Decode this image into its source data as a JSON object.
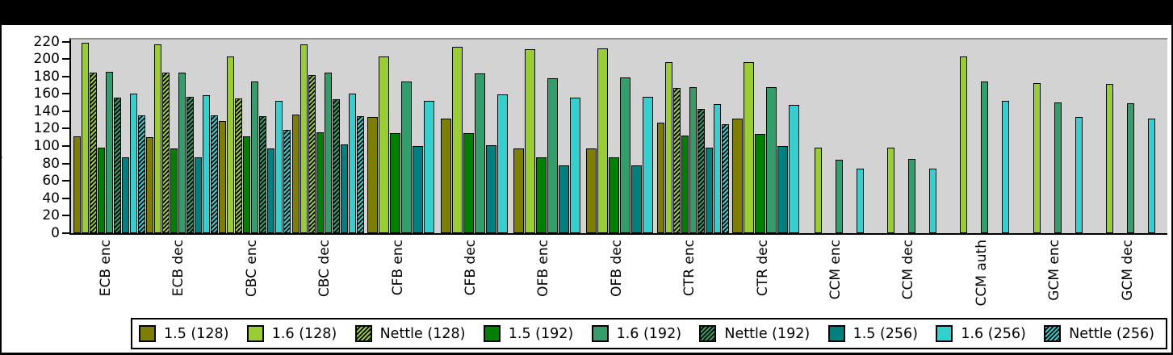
{
  "window": {
    "outer_background": "#000000",
    "figure_background": "#ffffff",
    "plot_background": "#d3d3d3"
  },
  "chart_data": {
    "type": "bar",
    "title": "",
    "xlabel": "",
    "ylabel": "MiB/s",
    "ylim": [
      0,
      224
    ],
    "yticks": [
      0,
      20,
      40,
      60,
      80,
      100,
      120,
      140,
      160,
      180,
      200,
      220
    ],
    "grid": false,
    "legend_position": "bottom",
    "categories": [
      "ECB enc",
      "ECB dec",
      "CBC enc",
      "CBC dec",
      "CFB enc",
      "CFB dec",
      "OFB enc",
      "OFB dec",
      "CTR enc",
      "CTR dec",
      "CCM enc",
      "CCM dec",
      "CCM auth",
      "GCM enc",
      "GCM dec"
    ],
    "series": [
      {
        "name": "1.5 (128)",
        "color": "#7e7e00",
        "hatch": false,
        "values": [
          111,
          110,
          129,
          136,
          133,
          132,
          97,
          97,
          127,
          132,
          null,
          null,
          null,
          null,
          null
        ]
      },
      {
        "name": "1.6 (128)",
        "color": "#9acd32",
        "hatch": false,
        "values": [
          219,
          217,
          203,
          217,
          203,
          214,
          211,
          212,
          196,
          196,
          98,
          98,
          203,
          172,
          171
        ]
      },
      {
        "name": "Nettle (128)",
        "color": "#9acd32",
        "hatch": true,
        "values": [
          184,
          184,
          155,
          182,
          null,
          null,
          null,
          null,
          167,
          null,
          null,
          null,
          null,
          null,
          null
        ]
      },
      {
        "name": "1.5 (192)",
        "color": "#008000",
        "hatch": false,
        "values": [
          98,
          97,
          111,
          116,
          115,
          115,
          87,
          87,
          112,
          114,
          null,
          null,
          null,
          null,
          null
        ]
      },
      {
        "name": "1.6 (192)",
        "color": "#319e6b",
        "hatch": false,
        "values": [
          185,
          184,
          174,
          184,
          174,
          183,
          178,
          179,
          168,
          168,
          84,
          85,
          174,
          150,
          149
        ]
      },
      {
        "name": "Nettle (192)",
        "color": "#319e6b",
        "hatch": true,
        "values": [
          156,
          157,
          134,
          154,
          null,
          null,
          null,
          null,
          143,
          null,
          null,
          null,
          null,
          null,
          null
        ]
      },
      {
        "name": "1.5 (256)",
        "color": "#007f7f",
        "hatch": false,
        "values": [
          87,
          87,
          97,
          102,
          100,
          101,
          78,
          78,
          98,
          100,
          null,
          null,
          null,
          null,
          null
        ]
      },
      {
        "name": "1.6 (256)",
        "color": "#35cfcf",
        "hatch": false,
        "values": [
          160,
          158,
          152,
          160,
          152,
          159,
          156,
          157,
          148,
          147,
          74,
          74,
          152,
          133,
          132
        ]
      },
      {
        "name": "Nettle (256)",
        "color": "#35cfcf",
        "hatch": true,
        "values": [
          135,
          135,
          119,
          134,
          null,
          null,
          null,
          null,
          125,
          null,
          null,
          null,
          null,
          null,
          null
        ]
      }
    ],
    "legend_entries": [
      "1.5 (128)",
      "1.6 (128)",
      "Nettle (128)",
      "1.5 (192)",
      "1.6 (192)",
      "Nettle (192)",
      "1.5 (256)",
      "1.6 (256)",
      "Nettle (256)"
    ]
  }
}
